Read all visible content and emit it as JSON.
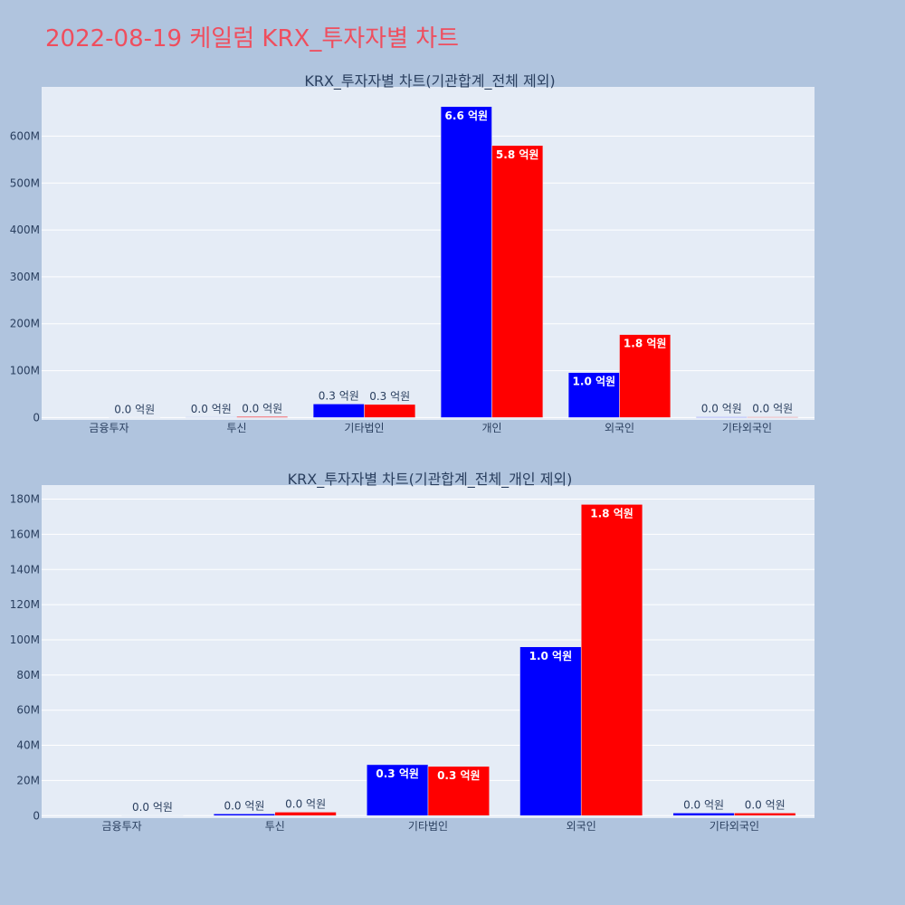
{
  "page": {
    "title": "2022-08-19 케일럼 KRX_투자자별 차트"
  },
  "colors": {
    "buy": "#0000ff",
    "sell": "#ff0000",
    "plot_bg": "#e5ecf6",
    "grid": "#ffffff",
    "title": "#ef4e5e"
  },
  "chart_data": [
    {
      "type": "bar",
      "title": "KRX_투자자별 차트(기관합계_전체 제외)",
      "categories": [
        "금융투자",
        "투신",
        "기타법인",
        "개인",
        "외국인",
        "기타외국인"
      ],
      "series": [
        {
          "color": "#0000ff",
          "values": [
            0,
            1000000,
            29000000,
            663000000,
            96000000,
            1500000
          ],
          "labels": [
            "",
            "0.0 억원",
            "0.3 억원",
            "6.6 억원",
            "1.0 억원",
            "0.0 억원"
          ]
        },
        {
          "color": "#ff0000",
          "values": [
            100000,
            2000000,
            28000000,
            580000000,
            177000000,
            1500000
          ],
          "labels": [
            "0.0 억원",
            "0.0 억원",
            "0.3 억원",
            "5.8 억원",
            "1.8 억원",
            "0.0 억원"
          ]
        }
      ],
      "yticks": [
        0,
        100000000,
        200000000,
        300000000,
        400000000,
        500000000,
        600000000
      ],
      "ytick_labels": [
        "0",
        "100M",
        "200M",
        "300M",
        "400M",
        "500M",
        "600M"
      ],
      "ylim": [
        -5000000,
        705000000
      ],
      "grid": true
    },
    {
      "type": "bar",
      "title": "KRX_투자자별 차트(기관합계_전체_개인 제외)",
      "categories": [
        "금융투자",
        "투신",
        "기타법인",
        "외국인",
        "기타외국인"
      ],
      "series": [
        {
          "color": "#0000ff",
          "values": [
            0,
            1000000,
            29000000,
            96000000,
            1500000
          ],
          "labels": [
            "",
            "0.0 억원",
            "0.3 억원",
            "1.0 억원",
            "0.0 억원"
          ]
        },
        {
          "color": "#ff0000",
          "values": [
            100000,
            2000000,
            28000000,
            177000000,
            1500000
          ],
          "labels": [
            "0.0 억원",
            "0.0 억원",
            "0.3 억원",
            "1.8 억원",
            "0.0 억원"
          ]
        }
      ],
      "yticks": [
        0,
        20000000,
        40000000,
        60000000,
        80000000,
        100000000,
        120000000,
        140000000,
        160000000,
        180000000
      ],
      "ytick_labels": [
        "0",
        "20M",
        "40M",
        "60M",
        "80M",
        "100M",
        "120M",
        "140M",
        "160M",
        "180M"
      ],
      "ylim": [
        -1400000,
        188000000
      ],
      "grid": true
    }
  ]
}
